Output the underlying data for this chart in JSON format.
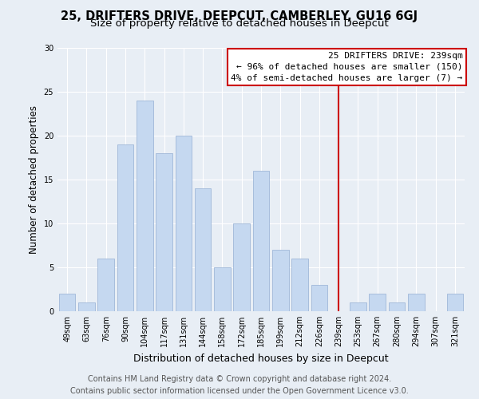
{
  "title": "25, DRIFTERS DRIVE, DEEPCUT, CAMBERLEY, GU16 6GJ",
  "subtitle": "Size of property relative to detached houses in Deepcut",
  "xlabel": "Distribution of detached houses by size in Deepcut",
  "ylabel": "Number of detached properties",
  "bar_labels": [
    "49sqm",
    "63sqm",
    "76sqm",
    "90sqm",
    "104sqm",
    "117sqm",
    "131sqm",
    "144sqm",
    "158sqm",
    "172sqm",
    "185sqm",
    "199sqm",
    "212sqm",
    "226sqm",
    "239sqm",
    "253sqm",
    "267sqm",
    "280sqm",
    "294sqm",
    "307sqm",
    "321sqm"
  ],
  "bar_values": [
    2,
    1,
    6,
    19,
    24,
    18,
    20,
    14,
    5,
    10,
    16,
    7,
    6,
    3,
    0,
    1,
    2,
    1,
    2,
    0,
    2
  ],
  "bar_color": "#c5d8f0",
  "bar_edgecolor": "#a0b8d8",
  "highlight_index": 14,
  "highlight_line_color": "#cc0000",
  "annotation_title": "25 DRIFTERS DRIVE: 239sqm",
  "annotation_line1": "← 96% of detached houses are smaller (150)",
  "annotation_line2": "4% of semi-detached houses are larger (7) →",
  "annotation_box_facecolor": "#ffffff",
  "annotation_box_edgecolor": "#cc0000",
  "ylim": [
    0,
    30
  ],
  "yticks": [
    0,
    5,
    10,
    15,
    20,
    25,
    30
  ],
  "background_color": "#e8eef5",
  "plot_bg_color": "#e8eef5",
  "footer_line1": "Contains HM Land Registry data © Crown copyright and database right 2024.",
  "footer_line2": "Contains public sector information licensed under the Open Government Licence v3.0.",
  "title_fontsize": 10.5,
  "subtitle_fontsize": 9.5,
  "xlabel_fontsize": 9,
  "ylabel_fontsize": 8.5,
  "tick_fontsize": 7,
  "annotation_title_fontsize": 8.5,
  "annotation_body_fontsize": 8,
  "footer_fontsize": 7
}
